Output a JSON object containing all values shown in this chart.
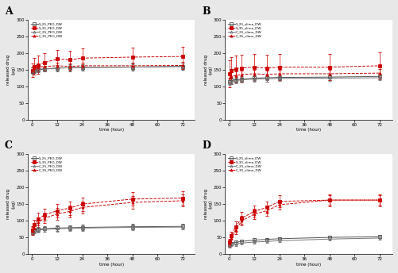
{
  "subplots": {
    "A": {
      "title": "A",
      "legend": [
        "S_25_PEO_DW",
        "S_35_PEO_DW",
        "C_25_PEO_DW",
        "C_35_PEO_DW"
      ],
      "ylim": [
        0,
        300
      ],
      "yticks": [
        0,
        50,
        100,
        150,
        200,
        250,
        300
      ],
      "series": {
        "S_25": {
          "x": [
            0.3,
            1,
            3,
            6,
            12,
            18,
            24,
            48,
            72
          ],
          "y": [
            145,
            148,
            150,
            152,
            155,
            156,
            157,
            158,
            160
          ],
          "err": [
            8,
            8,
            8,
            8,
            10,
            10,
            10,
            10,
            10
          ]
        },
        "S_35": {
          "x": [
            0.3,
            1,
            3,
            6,
            12,
            18,
            24,
            48,
            72
          ],
          "y": [
            148,
            160,
            165,
            172,
            182,
            180,
            185,
            188,
            190
          ],
          "err": [
            20,
            25,
            28,
            28,
            28,
            28,
            28,
            28,
            28
          ]
        },
        "C_25": {
          "x": [
            0.3,
            1,
            3,
            6,
            12,
            18,
            24,
            48,
            72
          ],
          "y": [
            148,
            150,
            152,
            153,
            155,
            156,
            157,
            158,
            160
          ],
          "err": [
            8,
            8,
            8,
            8,
            8,
            8,
            8,
            8,
            8
          ]
        },
        "C_35": {
          "x": [
            0.3,
            1,
            3,
            6,
            12,
            18,
            24,
            48,
            72
          ],
          "y": [
            150,
            155,
            158,
            160,
            162,
            160,
            162,
            162,
            163
          ],
          "err": [
            10,
            10,
            10,
            10,
            10,
            10,
            10,
            10,
            10
          ]
        }
      }
    },
    "B": {
      "title": "B",
      "legend": [
        "S_25_slime_DW",
        "S_35_slime_DW",
        "C_25_slime_DW",
        "C_35_slime_DW"
      ],
      "ylim": [
        0,
        300
      ],
      "yticks": [
        0,
        50,
        100,
        150,
        200,
        250,
        300
      ],
      "series": {
        "S_25": {
          "x": [
            0.3,
            1,
            3,
            6,
            12,
            18,
            24,
            48,
            72
          ],
          "y": [
            115,
            118,
            120,
            122,
            125,
            126,
            127,
            128,
            130
          ],
          "err": [
            8,
            8,
            8,
            8,
            8,
            8,
            8,
            8,
            8
          ]
        },
        "S_35": {
          "x": [
            0.3,
            1,
            3,
            6,
            12,
            18,
            24,
            48,
            72
          ],
          "y": [
            138,
            148,
            152,
            155,
            158,
            155,
            158,
            158,
            162
          ],
          "err": [
            40,
            40,
            40,
            40,
            40,
            40,
            40,
            40,
            40
          ]
        },
        "C_25": {
          "x": [
            0.3,
            1,
            3,
            6,
            12,
            18,
            24,
            48,
            72
          ],
          "y": [
            112,
            115,
            117,
            120,
            122,
            123,
            124,
            125,
            126
          ],
          "err": [
            8,
            8,
            8,
            8,
            8,
            8,
            8,
            8,
            8
          ]
        },
        "C_35": {
          "x": [
            0.3,
            1,
            3,
            6,
            12,
            18,
            24,
            48,
            72
          ],
          "y": [
            125,
            130,
            133,
            136,
            138,
            136,
            138,
            138,
            140
          ],
          "err": [
            12,
            12,
            12,
            12,
            12,
            12,
            12,
            12,
            12
          ]
        }
      }
    },
    "C": {
      "title": "C",
      "legend": [
        "S_25_PEO_DW",
        "S_35_PEO_DW",
        "C_25_PEO_DW",
        "C_35_PEO_DW"
      ],
      "ylim": [
        0,
        300
      ],
      "yticks": [
        0,
        50,
        100,
        150,
        200,
        250,
        300
      ],
      "series": {
        "S_25": {
          "x": [
            0.3,
            1,
            3,
            6,
            12,
            18,
            24,
            48,
            72
          ],
          "y": [
            68,
            72,
            74,
            76,
            78,
            79,
            80,
            82,
            83
          ],
          "err": [
            8,
            8,
            8,
            8,
            8,
            8,
            8,
            8,
            8
          ]
        },
        "S_35": {
          "x": [
            0.3,
            1,
            3,
            6,
            12,
            18,
            24,
            48,
            72
          ],
          "y": [
            72,
            88,
            105,
            118,
            130,
            138,
            150,
            165,
            168
          ],
          "err": [
            12,
            15,
            18,
            18,
            20,
            20,
            20,
            20,
            20
          ]
        },
        "C_25": {
          "x": [
            0.3,
            1,
            3,
            6,
            12,
            18,
            24,
            48,
            72
          ],
          "y": [
            65,
            70,
            72,
            74,
            76,
            77,
            78,
            80,
            81
          ],
          "err": [
            8,
            8,
            8,
            8,
            8,
            8,
            8,
            8,
            8
          ]
        },
        "C_35": {
          "x": [
            0.3,
            1,
            3,
            6,
            12,
            18,
            24,
            48,
            72
          ],
          "y": [
            70,
            80,
            95,
            108,
            120,
            128,
            140,
            155,
            160
          ],
          "err": [
            12,
            12,
            15,
            15,
            18,
            18,
            18,
            18,
            18
          ]
        }
      }
    },
    "D": {
      "title": "D",
      "legend": [
        "S_25_slime_DW",
        "S_35_slime_DW",
        "C_25_slime_DW",
        "C_35_slime_DW"
      ],
      "ylim": [
        0,
        300
      ],
      "yticks": [
        0,
        50,
        100,
        150,
        200,
        250,
        300
      ],
      "series": {
        "S_25": {
          "x": [
            0.3,
            1,
            3,
            6,
            12,
            18,
            24,
            48,
            72
          ],
          "y": [
            28,
            32,
            35,
            38,
            42,
            44,
            46,
            50,
            52
          ],
          "err": [
            5,
            5,
            5,
            5,
            5,
            5,
            5,
            5,
            5
          ]
        },
        "S_35": {
          "x": [
            0.3,
            1,
            3,
            6,
            12,
            18,
            24,
            48,
            72
          ],
          "y": [
            35,
            55,
            82,
            108,
            128,
            140,
            158,
            162,
            162
          ],
          "err": [
            10,
            12,
            15,
            18,
            18,
            18,
            18,
            18,
            18
          ]
        },
        "C_25": {
          "x": [
            0.3,
            1,
            3,
            6,
            12,
            18,
            24,
            48,
            72
          ],
          "y": [
            25,
            28,
            30,
            33,
            36,
            38,
            40,
            45,
            48
          ],
          "err": [
            5,
            5,
            5,
            5,
            5,
            5,
            5,
            5,
            5
          ]
        },
        "C_35": {
          "x": [
            0.3,
            1,
            3,
            6,
            12,
            18,
            24,
            48,
            72
          ],
          "y": [
            32,
            48,
            72,
            100,
            120,
            130,
            148,
            162,
            162
          ],
          "err": [
            10,
            12,
            12,
            15,
            15,
            15,
            15,
            15,
            15
          ]
        }
      }
    }
  },
  "xticks": [
    0,
    12,
    24,
    36,
    48,
    60,
    72
  ],
  "xlabel": "time (hour)",
  "ylabel": "released drug\n(μg)",
  "bg_color": "#ffffff",
  "fig_bg_color": "#e8e8e8"
}
